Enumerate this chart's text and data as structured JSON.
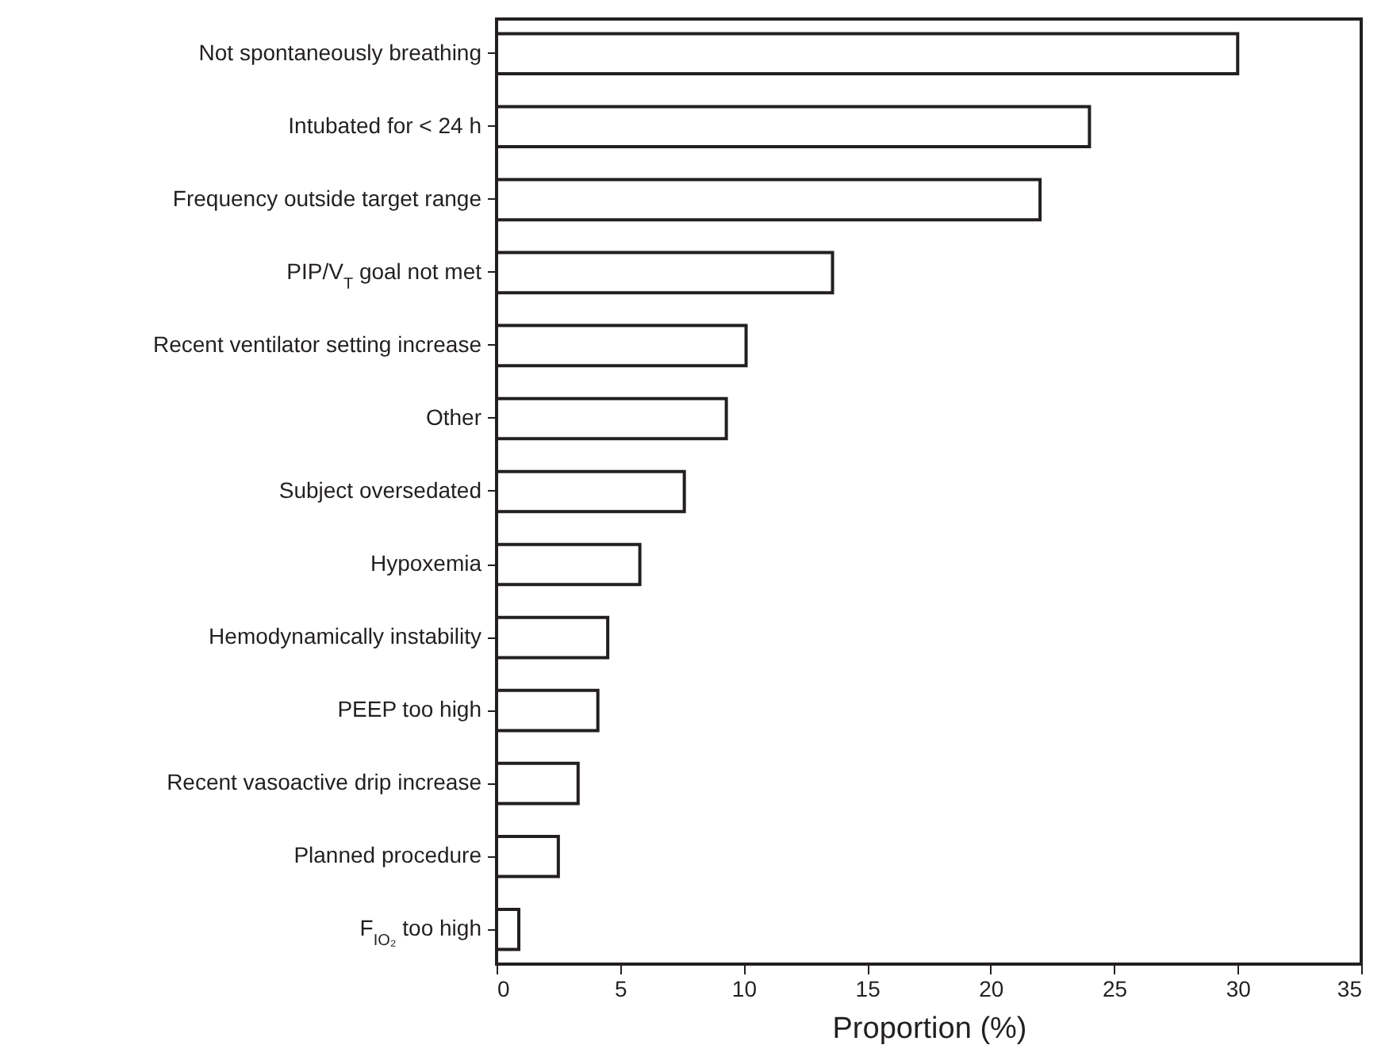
{
  "chart_data": {
    "type": "bar",
    "orientation": "horizontal",
    "xlabel": "Proportion (%)",
    "categories": [
      "Not spontaneously breathing",
      "Intubated for < 24 h",
      "Frequency outside target range",
      "PIP/V$_{T}$ goal not met",
      "Recent ventilator setting increase",
      "Other",
      "Subject oversedated",
      "Hypoxemia",
      "Hemodynamically instability",
      "PEEP too high",
      "Recent vasoactive drip increase",
      "Planned procedure",
      "F$_{IO₂}$ too high"
    ],
    "values": [
      30.0,
      24.0,
      22.0,
      13.6,
      10.1,
      9.3,
      7.6,
      5.8,
      4.5,
      4.1,
      3.3,
      2.5,
      0.9
    ],
    "color": "#ffffff",
    "xlim": [
      0,
      35
    ],
    "xticks": [
      0,
      5,
      10,
      15,
      20,
      25,
      30,
      35
    ]
  }
}
